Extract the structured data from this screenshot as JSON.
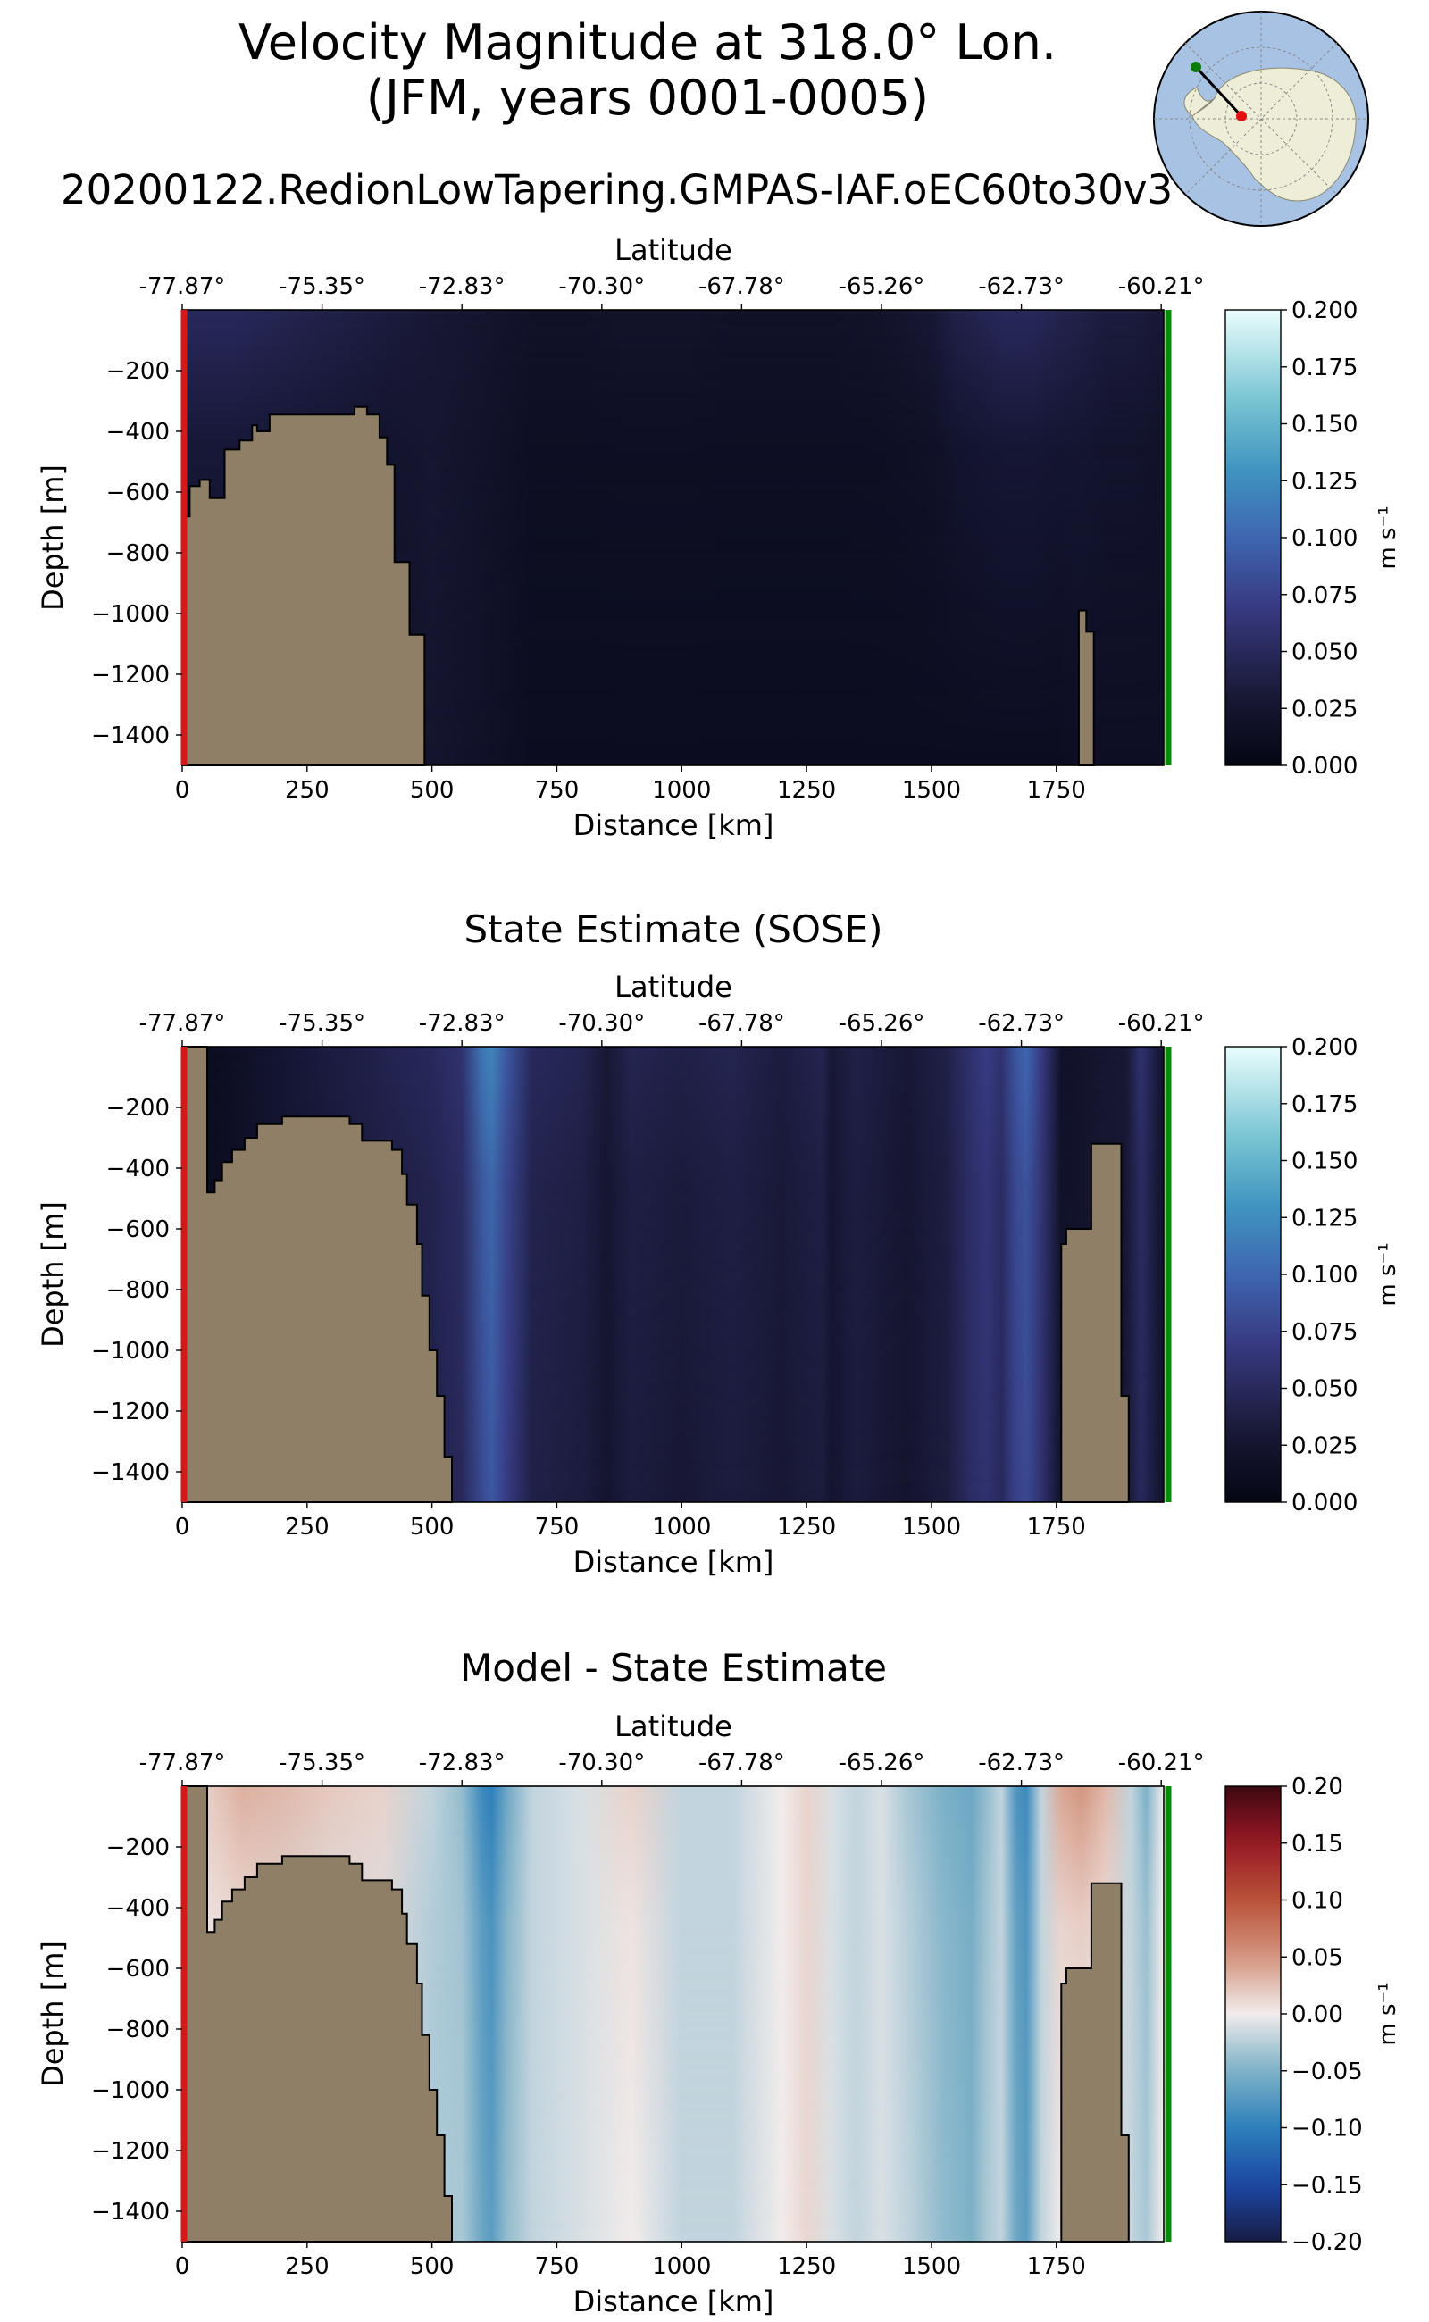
{
  "title": {
    "line1": "Velocity Magnitude at 318.0° Lon.",
    "line2": "(JFM, years 0001-0005)",
    "run": "20200122.RedionLowTapering.GMPAS-IAF.oEC60to30v3"
  },
  "inset_map": {
    "description_icon": "antarctica-map-icon",
    "transect_start_color": "#0a7a0a",
    "transect_end_color": "#e01010"
  },
  "colors": {
    "land": "#8f7f67",
    "left_edge": "#d11a1a",
    "right_edge": "#0a8a0a"
  },
  "chart_data": [
    {
      "type": "heatmap",
      "id": "model",
      "title": "",
      "xlabel": "Distance [km]",
      "ylabel": "Depth [m]",
      "top_axis_label": "Latitude",
      "xlim": [
        0,
        1965
      ],
      "ylim": [
        -1500,
        0
      ],
      "x_ticks": [
        0,
        250,
        500,
        750,
        1000,
        1250,
        1500,
        1750
      ],
      "x_tick_labels": [
        "0",
        "250",
        "500",
        "750",
        "1000",
        "1250",
        "1500",
        "1750"
      ],
      "y_ticks": [
        -200,
        -400,
        -600,
        -800,
        -1000,
        -1200,
        -1400
      ],
      "y_tick_labels": [
        "−200",
        "−400",
        "−600",
        "−800",
        "−1000",
        "−1200",
        "−1400"
      ],
      "lat_tick_positions_km": [
        0,
        280,
        560,
        840,
        1120,
        1400,
        1680,
        1960
      ],
      "lat_tick_labels": [
        "-77.87°",
        "-75.35°",
        "-72.83°",
        "-70.30°",
        "-67.78°",
        "-65.26°",
        "-62.73°",
        "-60.21°"
      ],
      "colorbar": {
        "label": "m s⁻¹",
        "range": [
          0.0,
          0.2
        ],
        "ticks": [
          0.0,
          0.025,
          0.05,
          0.075,
          0.1,
          0.125,
          0.15,
          0.175,
          0.2
        ],
        "tick_labels": [
          "0.000",
          "0.025",
          "0.050",
          "0.075",
          "0.100",
          "0.125",
          "0.150",
          "0.175",
          "0.200"
        ],
        "colormap": "ice"
      },
      "columns": {
        "x": [
          0,
          100,
          200,
          300,
          400,
          500,
          600,
          700,
          800,
          900,
          1000,
          1100,
          1200,
          1300,
          1400,
          1500,
          1550,
          1600,
          1650,
          1700,
          1750,
          1800,
          1850,
          1900,
          1965
        ],
        "surface": [
          0.05,
          0.05,
          0.045,
          0.04,
          0.035,
          0.03,
          0.025,
          0.02,
          0.02,
          0.022,
          0.022,
          0.02,
          0.02,
          0.02,
          0.022,
          0.03,
          0.04,
          0.045,
          0.05,
          0.05,
          0.045,
          0.04,
          0.035,
          0.035,
          0.03
        ],
        "deep": [
          0.015,
          0.015,
          0.015,
          0.015,
          0.015,
          0.025,
          0.02,
          0.012,
          0.012,
          0.012,
          0.012,
          0.012,
          0.012,
          0.012,
          0.012,
          0.012,
          0.012,
          0.012,
          0.012,
          0.012,
          0.012,
          0.015,
          0.015,
          0.015,
          0.015
        ]
      },
      "bathymetry": [
        [
          0,
          -680
        ],
        [
          15,
          -680
        ],
        [
          15,
          -580
        ],
        [
          35,
          -580
        ],
        [
          35,
          -560
        ],
        [
          55,
          -560
        ],
        [
          55,
          -620
        ],
        [
          85,
          -620
        ],
        [
          85,
          -460
        ],
        [
          115,
          -460
        ],
        [
          115,
          -430
        ],
        [
          140,
          -430
        ],
        [
          140,
          -380
        ],
        [
          150,
          -380
        ],
        [
          150,
          -400
        ],
        [
          175,
          -400
        ],
        [
          175,
          -345
        ],
        [
          345,
          -345
        ],
        [
          345,
          -320
        ],
        [
          370,
          -320
        ],
        [
          370,
          -345
        ],
        [
          395,
          -345
        ],
        [
          395,
          -420
        ],
        [
          410,
          -420
        ],
        [
          410,
          -510
        ],
        [
          425,
          -510
        ],
        [
          425,
          -830
        ],
        [
          455,
          -830
        ],
        [
          455,
          -1070
        ],
        [
          485,
          -1070
        ],
        [
          485,
          -1500
        ]
      ],
      "seamount": [
        [
          1795,
          -1500
        ],
        [
          1795,
          -990
        ],
        [
          1810,
          -990
        ],
        [
          1810,
          -1060
        ],
        [
          1825,
          -1060
        ],
        [
          1825,
          -1500
        ]
      ]
    },
    {
      "type": "heatmap",
      "id": "sose",
      "title": "State Estimate (SOSE)",
      "xlabel": "Distance [km]",
      "ylabel": "Depth [m]",
      "top_axis_label": "Latitude",
      "xlim": [
        0,
        1965
      ],
      "ylim": [
        -1500,
        0
      ],
      "x_ticks": [
        0,
        250,
        500,
        750,
        1000,
        1250,
        1500,
        1750
      ],
      "x_tick_labels": [
        "0",
        "250",
        "500",
        "750",
        "1000",
        "1250",
        "1500",
        "1750"
      ],
      "y_ticks": [
        -200,
        -400,
        -600,
        -800,
        -1000,
        -1200,
        -1400
      ],
      "y_tick_labels": [
        "−200",
        "−400",
        "−600",
        "−800",
        "−1000",
        "−1200",
        "−1400"
      ],
      "lat_tick_positions_km": [
        0,
        280,
        560,
        840,
        1120,
        1400,
        1680,
        1960
      ],
      "lat_tick_labels": [
        "-77.87°",
        "-75.35°",
        "-72.83°",
        "-70.30°",
        "-67.78°",
        "-65.26°",
        "-62.73°",
        "-60.21°"
      ],
      "colorbar": {
        "label": "m s⁻¹",
        "range": [
          0.0,
          0.2
        ],
        "ticks": [
          0.0,
          0.025,
          0.05,
          0.075,
          0.1,
          0.125,
          0.15,
          0.175,
          0.2
        ],
        "tick_labels": [
          "0.000",
          "0.025",
          "0.050",
          "0.075",
          "0.100",
          "0.125",
          "0.150",
          "0.175",
          "0.200"
        ],
        "colormap": "ice"
      },
      "columns": {
        "x": [
          0,
          60,
          500,
          560,
          600,
          620,
          650,
          700,
          800,
          850,
          900,
          1000,
          1100,
          1200,
          1280,
          1300,
          1350,
          1400,
          1450,
          1530,
          1580,
          1610,
          1640,
          1670,
          1690,
          1720,
          1760,
          1890,
          1920,
          1965
        ],
        "surface": [
          0.01,
          0.012,
          0.05,
          0.06,
          0.11,
          0.12,
          0.09,
          0.05,
          0.045,
          0.03,
          0.045,
          0.04,
          0.045,
          0.035,
          0.045,
          0.03,
          0.04,
          0.035,
          0.03,
          0.04,
          0.06,
          0.07,
          0.06,
          0.09,
          0.1,
          0.07,
          0.02,
          0.03,
          0.06,
          0.02
        ],
        "deep": [
          0.01,
          0.012,
          0.04,
          0.05,
          0.08,
          0.09,
          0.07,
          0.04,
          0.035,
          0.025,
          0.035,
          0.03,
          0.035,
          0.03,
          0.035,
          0.025,
          0.035,
          0.03,
          0.025,
          0.035,
          0.055,
          0.06,
          0.05,
          0.075,
          0.08,
          0.06,
          0.02,
          0.03,
          0.05,
          0.02
        ]
      },
      "bathymetry": [
        [
          0,
          -1500
        ],
        [
          0,
          0
        ],
        [
          50,
          0
        ],
        [
          50,
          -480
        ],
        [
          65,
          -480
        ],
        [
          65,
          -440
        ],
        [
          80,
          -440
        ],
        [
          80,
          -380
        ],
        [
          100,
          -380
        ],
        [
          100,
          -340
        ],
        [
          125,
          -340
        ],
        [
          125,
          -300
        ],
        [
          150,
          -300
        ],
        [
          150,
          -255
        ],
        [
          200,
          -255
        ],
        [
          200,
          -230
        ],
        [
          335,
          -230
        ],
        [
          335,
          -255
        ],
        [
          360,
          -255
        ],
        [
          360,
          -310
        ],
        [
          420,
          -310
        ],
        [
          420,
          -340
        ],
        [
          440,
          -340
        ],
        [
          440,
          -420
        ],
        [
          450,
          -420
        ],
        [
          450,
          -520
        ],
        [
          470,
          -520
        ],
        [
          470,
          -650
        ],
        [
          480,
          -650
        ],
        [
          480,
          -820
        ],
        [
          495,
          -820
        ],
        [
          495,
          -1000
        ],
        [
          510,
          -1000
        ],
        [
          510,
          -1150
        ],
        [
          525,
          -1150
        ],
        [
          525,
          -1350
        ],
        [
          540,
          -1350
        ],
        [
          540,
          -1500
        ]
      ],
      "seamount": [
        [
          1760,
          -1500
        ],
        [
          1760,
          -650
        ],
        [
          1770,
          -650
        ],
        [
          1770,
          -600
        ],
        [
          1820,
          -600
        ],
        [
          1820,
          -320
        ],
        [
          1850,
          -320
        ],
        [
          1850,
          -320
        ],
        [
          1880,
          -320
        ],
        [
          1880,
          -1150
        ],
        [
          1895,
          -1150
        ],
        [
          1895,
          -1500
        ]
      ]
    },
    {
      "type": "heatmap",
      "id": "diff",
      "title": "Model - State Estimate",
      "xlabel": "Distance [km]",
      "ylabel": "Depth [m]",
      "top_axis_label": "Latitude",
      "xlim": [
        0,
        1965
      ],
      "ylim": [
        -1500,
        0
      ],
      "x_ticks": [
        0,
        250,
        500,
        750,
        1000,
        1250,
        1500,
        1750
      ],
      "x_tick_labels": [
        "0",
        "250",
        "500",
        "750",
        "1000",
        "1250",
        "1500",
        "1750"
      ],
      "y_ticks": [
        -200,
        -400,
        -600,
        -800,
        -1000,
        -1200,
        -1400
      ],
      "y_tick_labels": [
        "−200",
        "−400",
        "−600",
        "−800",
        "−1000",
        "−1200",
        "−1400"
      ],
      "lat_tick_positions_km": [
        0,
        280,
        560,
        840,
        1120,
        1400,
        1680,
        1960
      ],
      "lat_tick_labels": [
        "-77.87°",
        "-75.35°",
        "-72.83°",
        "-70.30°",
        "-67.78°",
        "-65.26°",
        "-62.73°",
        "-60.21°"
      ],
      "colorbar": {
        "label": "m s⁻¹",
        "range": [
          -0.2,
          0.2
        ],
        "ticks": [
          -0.2,
          -0.15,
          -0.1,
          -0.05,
          0.0,
          0.05,
          0.1,
          0.15,
          0.2
        ],
        "tick_labels": [
          "−0.20",
          "−0.15",
          "−0.10",
          "−0.05",
          "0.00",
          "0.05",
          "0.10",
          "0.15",
          "0.20"
        ],
        "colormap": "balance"
      },
      "columns": {
        "x": [
          0,
          60,
          120,
          200,
          300,
          400,
          500,
          560,
          600,
          620,
          650,
          700,
          800,
          900,
          1000,
          1100,
          1200,
          1250,
          1300,
          1350,
          1400,
          1450,
          1520,
          1580,
          1610,
          1640,
          1670,
          1690,
          1720,
          1760,
          1800,
          1850,
          1900,
          1930,
          1965
        ],
        "surface": [
          0.02,
          0.02,
          0.035,
          0.03,
          0.02,
          0.015,
          -0.02,
          -0.04,
          -0.09,
          -0.1,
          -0.06,
          -0.02,
          -0.01,
          0.015,
          -0.02,
          -0.02,
          0.0,
          0.015,
          -0.01,
          -0.02,
          -0.01,
          -0.03,
          -0.05,
          -0.06,
          -0.04,
          -0.02,
          -0.08,
          -0.09,
          -0.02,
          0.04,
          0.05,
          0.03,
          -0.02,
          -0.05,
          0.0
        ],
        "deep": [
          0.0,
          0.0,
          0.0,
          -0.01,
          -0.01,
          -0.01,
          -0.03,
          -0.03,
          -0.06,
          -0.07,
          -0.04,
          -0.02,
          -0.01,
          0.0,
          -0.02,
          -0.02,
          0.0,
          0.012,
          -0.01,
          -0.02,
          -0.01,
          -0.02,
          -0.04,
          -0.05,
          -0.03,
          -0.02,
          -0.06,
          -0.07,
          -0.02,
          0.0,
          0.0,
          0.0,
          -0.02,
          -0.03,
          0.0
        ]
      },
      "bathymetry": [
        [
          0,
          -1500
        ],
        [
          0,
          0
        ],
        [
          50,
          0
        ],
        [
          50,
          -480
        ],
        [
          65,
          -480
        ],
        [
          65,
          -440
        ],
        [
          80,
          -440
        ],
        [
          80,
          -380
        ],
        [
          100,
          -380
        ],
        [
          100,
          -340
        ],
        [
          125,
          -340
        ],
        [
          125,
          -300
        ],
        [
          150,
          -300
        ],
        [
          150,
          -255
        ],
        [
          200,
          -255
        ],
        [
          200,
          -230
        ],
        [
          335,
          -230
        ],
        [
          335,
          -255
        ],
        [
          360,
          -255
        ],
        [
          360,
          -310
        ],
        [
          420,
          -310
        ],
        [
          420,
          -340
        ],
        [
          440,
          -340
        ],
        [
          440,
          -420
        ],
        [
          450,
          -420
        ],
        [
          450,
          -520
        ],
        [
          470,
          -520
        ],
        [
          470,
          -650
        ],
        [
          480,
          -650
        ],
        [
          480,
          -820
        ],
        [
          495,
          -820
        ],
        [
          495,
          -1000
        ],
        [
          510,
          -1000
        ],
        [
          510,
          -1150
        ],
        [
          525,
          -1150
        ],
        [
          525,
          -1350
        ],
        [
          540,
          -1350
        ],
        [
          540,
          -1500
        ]
      ],
      "seamount": [
        [
          1760,
          -1500
        ],
        [
          1760,
          -650
        ],
        [
          1770,
          -650
        ],
        [
          1770,
          -600
        ],
        [
          1820,
          -600
        ],
        [
          1820,
          -320
        ],
        [
          1880,
          -320
        ],
        [
          1880,
          -1150
        ],
        [
          1895,
          -1150
        ],
        [
          1895,
          -1500
        ]
      ]
    }
  ]
}
